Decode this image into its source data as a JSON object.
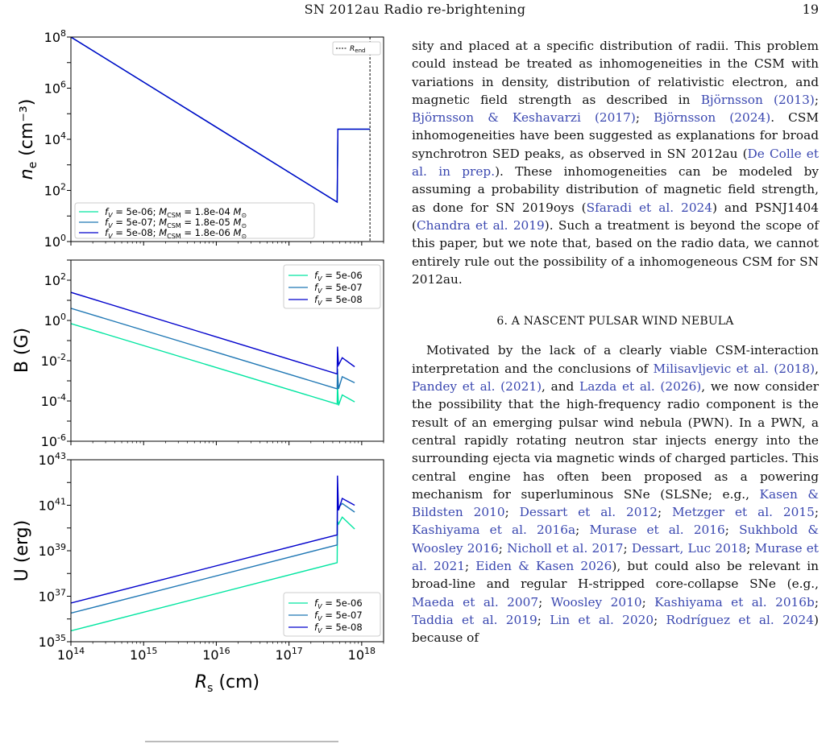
{
  "header": {
    "running_title": "SN 2012au Radio re-brightening",
    "page_number": "19"
  },
  "chart_data": [
    {
      "type": "line",
      "title": "",
      "xlabel": "R_s (cm)",
      "ylabel": "n_e (cm^-3)",
      "x_scale": "log",
      "y_scale": "log",
      "xlim": [
        100000000000000.0,
        2e+18
      ],
      "ylim": [
        1,
        100000000.0
      ],
      "grid": false,
      "legend_position": "lower-left",
      "vline": {
        "x": 1.3e+18,
        "label": "R_end",
        "style": "dashed"
      },
      "series": [
        {
          "name": "f_V = 5e-06; M_CSM = 1.8e-04 M_⊙",
          "color": "#00e5a0",
          "x": [
            100000000000000.0,
            4.6e+17,
            4.6e+17,
            4.7e+17,
            1.3e+18
          ],
          "y": [
            100000000.0,
            35,
            35,
            25000,
            25000
          ]
        },
        {
          "name": "f_V = 5e-07; M_CSM = 1.8e-05 M_⊙",
          "color": "#1f77b4",
          "x": [
            100000000000000.0,
            4.6e+17,
            4.6e+17,
            4.7e+17,
            1.3e+18
          ],
          "y": [
            100000000.0,
            35,
            35,
            25000,
            25000
          ]
        },
        {
          "name": "f_V = 5e-08; M_CSM = 1.8e-06 M_⊙",
          "color": "#0000cc",
          "x": [
            100000000000000.0,
            4.6e+17,
            4.6e+17,
            4.7e+17,
            1.3e+18
          ],
          "y": [
            100000000.0,
            35,
            35,
            25000,
            25000
          ]
        }
      ]
    },
    {
      "type": "line",
      "title": "",
      "xlabel": "R_s (cm)",
      "ylabel": "B (G)",
      "x_scale": "log",
      "y_scale": "log",
      "xlim": [
        100000000000000.0,
        2e+18
      ],
      "ylim": [
        1e-06,
        1000.0
      ],
      "grid": false,
      "legend_position": "upper-right",
      "series": [
        {
          "name": "f_V = 5e-06",
          "color": "#00e5a0",
          "x": [
            100000000000000.0,
            4.6e+17,
            4.65e+17,
            4.8e+17,
            5.4e+17,
            8e+17
          ],
          "y": [
            0.7,
            7e-05,
            0.0006,
            6e-05,
            0.0002,
            9e-05
          ]
        },
        {
          "name": "f_V = 5e-07",
          "color": "#1f77b4",
          "x": [
            100000000000000.0,
            4.6e+17,
            4.65e+17,
            4.8e+17,
            5.4e+17,
            8e+17
          ],
          "y": [
            4,
            0.0004,
            0.004,
            0.0004,
            0.0016,
            0.0008
          ]
        },
        {
          "name": "f_V = 5e-08",
          "color": "#0000cc",
          "x": [
            100000000000000.0,
            4.6e+17,
            4.65e+17,
            4.8e+17,
            5.4e+17,
            8e+17
          ],
          "y": [
            25,
            0.0022,
            0.05,
            0.006,
            0.014,
            0.005
          ]
        }
      ]
    },
    {
      "type": "line",
      "title": "",
      "xlabel": "R_s (cm)",
      "ylabel": "U (erg)",
      "x_scale": "log",
      "y_scale": "log",
      "xlim": [
        100000000000000.0,
        2e+18
      ],
      "ylim": [
        1e+35,
        1e+43
      ],
      "grid": false,
      "legend_position": "lower-right",
      "series": [
        {
          "name": "f_V = 5e-06",
          "color": "#00e5a0",
          "x": [
            100000000000000.0,
            4.6e+17,
            4.65e+17,
            4.8e+17,
            5.4e+17,
            8e+17
          ],
          "y": [
            3e+35,
            3e+38,
            2e+40,
            1.5e+40,
            3e+40,
            9e+39
          ]
        },
        {
          "name": "f_V = 5e-07",
          "color": "#1f77b4",
          "x": [
            100000000000000.0,
            4.6e+17,
            4.65e+17,
            4.8e+17,
            5.4e+17,
            8e+17
          ],
          "y": [
            1.8e+36,
            1.8e+39,
            1.5e+41,
            8e+40,
            1.2e+41,
            5e+40
          ]
        },
        {
          "name": "f_V = 5e-08",
          "color": "#0000cc",
          "x": [
            100000000000000.0,
            4.6e+17,
            4.65e+17,
            4.8e+17,
            5.4e+17,
            8e+17
          ],
          "y": [
            5e+36,
            5e+39,
            2e+42,
            6e+40,
            2e+41,
            1e+41
          ]
        }
      ]
    }
  ],
  "text": {
    "p1": [
      {
        "t": "sity and placed at a specific distribution of radii. This problem could instead be treated as inhomogeneities in the CSM with variations in density, distribution of relativistic electron, and magnetic field strength as described in "
      },
      {
        "t": "Björnsson (2013)",
        "ref": true
      },
      {
        "t": "; "
      },
      {
        "t": "Björnsson & Keshavarzi (2017)",
        "ref": true
      },
      {
        "t": "; "
      },
      {
        "t": "Björnsson (2024)",
        "ref": true
      },
      {
        "t": ". CSM inhomogeneities have been suggested as explanations for broad synchrotron SED peaks, as observed in SN 2012au ("
      },
      {
        "t": "De Colle et al. in prep.",
        "ref": true
      },
      {
        "t": "). These inhomogeneities can be modeled by assuming a probability distribution of magnetic field strength, as done for SN 2019oys ("
      },
      {
        "t": "Sfaradi et al. 2024",
        "ref": true
      },
      {
        "t": ") and PSNJ1404 ("
      },
      {
        "t": "Chandra et al. 2019",
        "ref": true
      },
      {
        "t": "). Such a treatment is beyond the scope of this paper, but we note that, based on the radio data, we cannot entirely rule out the possibility of a inhomogeneous CSM for SN 2012au."
      }
    ],
    "section_heading": "6. A NASCENT PULSAR WIND NEBULA",
    "p2": [
      {
        "t": "Motivated by the lack of a clearly viable CSM-interaction interpretation and the conclusions of "
      },
      {
        "t": "Milisavljevic et al. (2018)",
        "ref": true
      },
      {
        "t": ", "
      },
      {
        "t": "Pandey et al. (2021)",
        "ref": true
      },
      {
        "t": ", and "
      },
      {
        "t": "Lazda et al. (2026)",
        "ref": true
      },
      {
        "t": ", we now consider the possibility that the high-frequency radio component is the result of an emerging pulsar wind nebula (PWN). In a PWN, a central rapidly rotating neutron star injects energy into the surrounding ejecta via magnetic winds of charged particles. This central engine has often been proposed as a powering mechanism for superluminous SNe (SLSNe; e.g., "
      },
      {
        "t": "Kasen & Bildsten 2010",
        "ref": true
      },
      {
        "t": "; "
      },
      {
        "t": "Dessart et al. 2012",
        "ref": true
      },
      {
        "t": "; "
      },
      {
        "t": "Metzger et al. 2015",
        "ref": true
      },
      {
        "t": "; "
      },
      {
        "t": "Kashiyama et al. 2016a",
        "ref": true
      },
      {
        "t": "; "
      },
      {
        "t": "Murase et al. 2016",
        "ref": true
      },
      {
        "t": "; "
      },
      {
        "t": "Sukhbold & Woosley 2016",
        "ref": true
      },
      {
        "t": "; "
      },
      {
        "t": "Nicholl et al. 2017",
        "ref": true
      },
      {
        "t": "; "
      },
      {
        "t": "Dessart, Luc 2018",
        "ref": true
      },
      {
        "t": "; "
      },
      {
        "t": "Murase et al. 2021",
        "ref": true
      },
      {
        "t": "; "
      },
      {
        "t": "Eiden & Kasen 2026",
        "ref": true
      },
      {
        "t": "), but could also be relevant in broad-line and regular H-stripped core-collapse SNe (e.g., "
      },
      {
        "t": "Maeda et al. 2007",
        "ref": true
      },
      {
        "t": "; "
      },
      {
        "t": "Woosley 2010",
        "ref": true
      },
      {
        "t": "; "
      },
      {
        "t": "Kashiyama et al. 2016b",
        "ref": true
      },
      {
        "t": "; "
      },
      {
        "t": "Taddia et al. 2019",
        "ref": true
      },
      {
        "t": "; "
      },
      {
        "t": "Lin et al. 2020",
        "ref": true
      },
      {
        "t": "; "
      },
      {
        "t": "Rodríguez et al. 2024",
        "ref": true
      },
      {
        "t": ") because of"
      }
    ]
  }
}
